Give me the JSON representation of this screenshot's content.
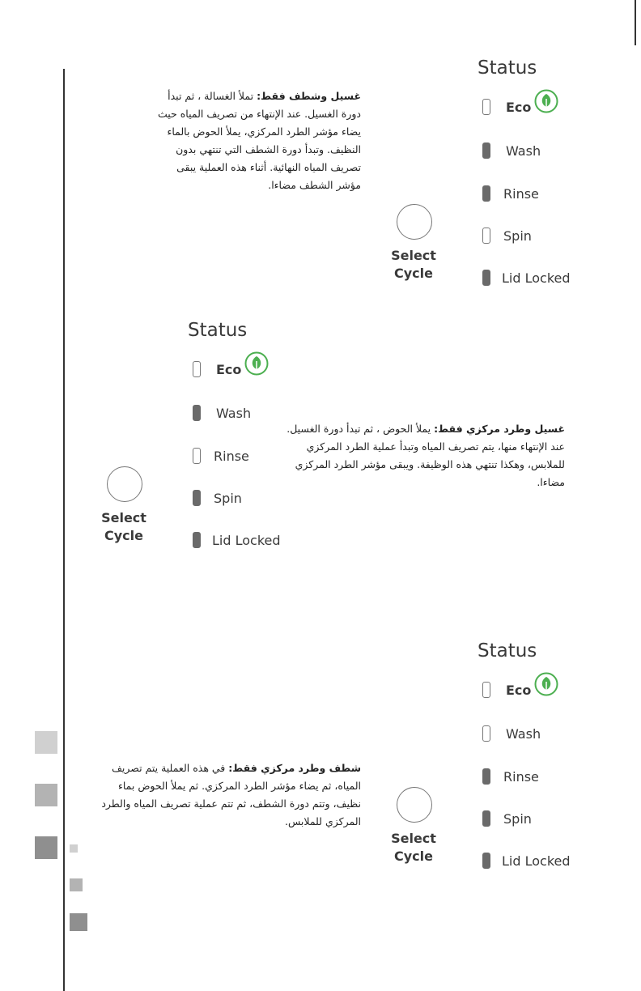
{
  "panels": [
    {
      "status_title": "Status",
      "select_label_1": "Select",
      "select_label_2": "Cycle",
      "indicators": [
        {
          "label": "Eco",
          "on": false
        },
        {
          "label": "Wash",
          "on": true
        },
        {
          "label": "Rinse",
          "on": true
        },
        {
          "label": "Spin",
          "on": false
        },
        {
          "label": "Lid Locked",
          "on": true
        }
      ],
      "description_title": "غسيل وشطف فقط:",
      "description_body": " تملأ الغسالة ، ثم تبدأ دورة الغسيل. عند الإنتهاء من تصريف المياه حيث يضاء مؤشر الطرد المركزي، يملأ الحوض بالماء النظيف. وتبدأ دورة الشطف التي تنتهي بدون تصريف المياه النهائية. أثناء هذه العملية يبقى مؤشر الشطف مضاءا."
    },
    {
      "status_title": "Status",
      "select_label_1": "Select",
      "select_label_2": "Cycle",
      "indicators": [
        {
          "label": "Eco",
          "on": false
        },
        {
          "label": "Wash",
          "on": true
        },
        {
          "label": "Rinse",
          "on": false
        },
        {
          "label": "Spin",
          "on": true
        },
        {
          "label": "Lid Locked",
          "on": true
        }
      ],
      "description_title": "غسيل وطرد مركزي فقط:",
      "description_body": " يملأ الحوض ، ثم تبدأ دورة الغسيل. عند الإنتهاء منها، يتم تصريف المياه وتبدأ عملية الطرد المركزي للملابس، وهكذا تنتهي هذه الوظيفة. ويبقى مؤشر الطرد المركزي مضاءا."
    },
    {
      "status_title": "Status",
      "select_label_1": "Select",
      "select_label_2": "Cycle",
      "indicators": [
        {
          "label": "Eco",
          "on": false
        },
        {
          "label": "Wash",
          "on": false
        },
        {
          "label": "Rinse",
          "on": true
        },
        {
          "label": "Spin",
          "on": true
        },
        {
          "label": "Lid Locked",
          "on": true
        }
      ],
      "description_title": "شطف وطرد مركزي فقط:",
      "description_body": " في هذه العملية يتم تصريف المياه، ثم يضاء مؤشر الطرد المركزي. ثم يملأ الحوض بماء نظيف، وتتم دورة الشطف، ثم تتم عملية تصريف المياه والطرد المركزي للملابس."
    }
  ],
  "colors": {
    "eco_green": "#4caf50",
    "indicator_on": "#6a6a6a"
  },
  "icons": {
    "eco": "leaf-icon"
  }
}
